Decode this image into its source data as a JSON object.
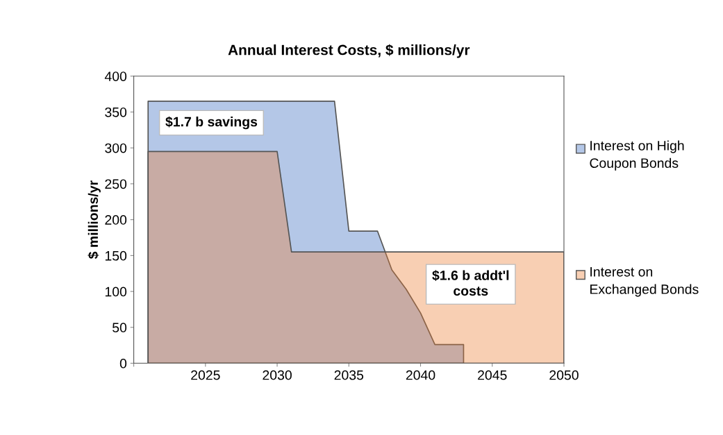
{
  "chart_data": {
    "type": "area",
    "title": "Annual Interest Costs, $ millions/yr",
    "ylabel": "$ millions/yr",
    "series": [
      {
        "name": "Interest on High Coupon Bonds",
        "color": "#b4c7e7",
        "x": [
          2021,
          2034,
          2035,
          2037,
          2038,
          2039,
          2040,
          2041,
          2043,
          2043
        ],
        "values": [
          365,
          365,
          184,
          184,
          130,
          103,
          70,
          26,
          26,
          0
        ]
      },
      {
        "name": "Interest on Exchanged Bonds",
        "color": "#ed7d31",
        "x": [
          2021,
          2030,
          2031,
          2050
        ],
        "values": [
          295,
          295,
          155,
          155
        ]
      }
    ],
    "xlim": [
      2020,
      2050
    ],
    "xticks": [
      {
        "value": 2020,
        "label": null
      },
      2025,
      2030,
      2035,
      2040,
      2045,
      2050
    ],
    "ylim": [
      0,
      400
    ],
    "yticks": [
      0,
      50,
      100,
      150,
      200,
      250,
      300,
      350,
      400
    ],
    "grid": false,
    "legend": "right",
    "annotations": [
      "$1.7 b savings",
      "$1.6 b addt'l\ncosts"
    ]
  }
}
